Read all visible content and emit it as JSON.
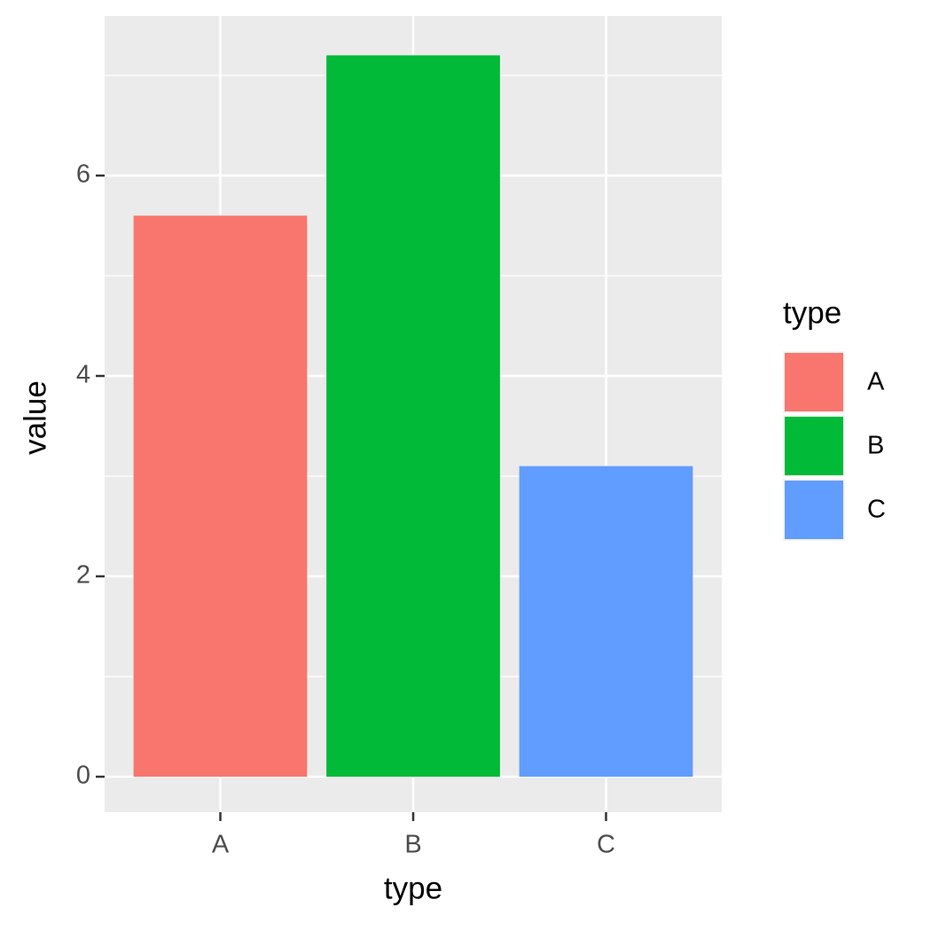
{
  "chart_data": {
    "type": "bar",
    "categories": [
      "A",
      "B",
      "C"
    ],
    "values": [
      5.6,
      7.2,
      3.1
    ],
    "colors": [
      "#f8766d",
      "#00ba38",
      "#619cff"
    ],
    "x_label": "type",
    "y_label": "value",
    "legend_title": "type",
    "ylim": [
      -0.354,
      7.593
    ],
    "yticks": [
      0,
      2,
      4,
      6
    ],
    "y_minor_grid": [
      1,
      3,
      5,
      7
    ],
    "grid": true,
    "legend": "right"
  }
}
